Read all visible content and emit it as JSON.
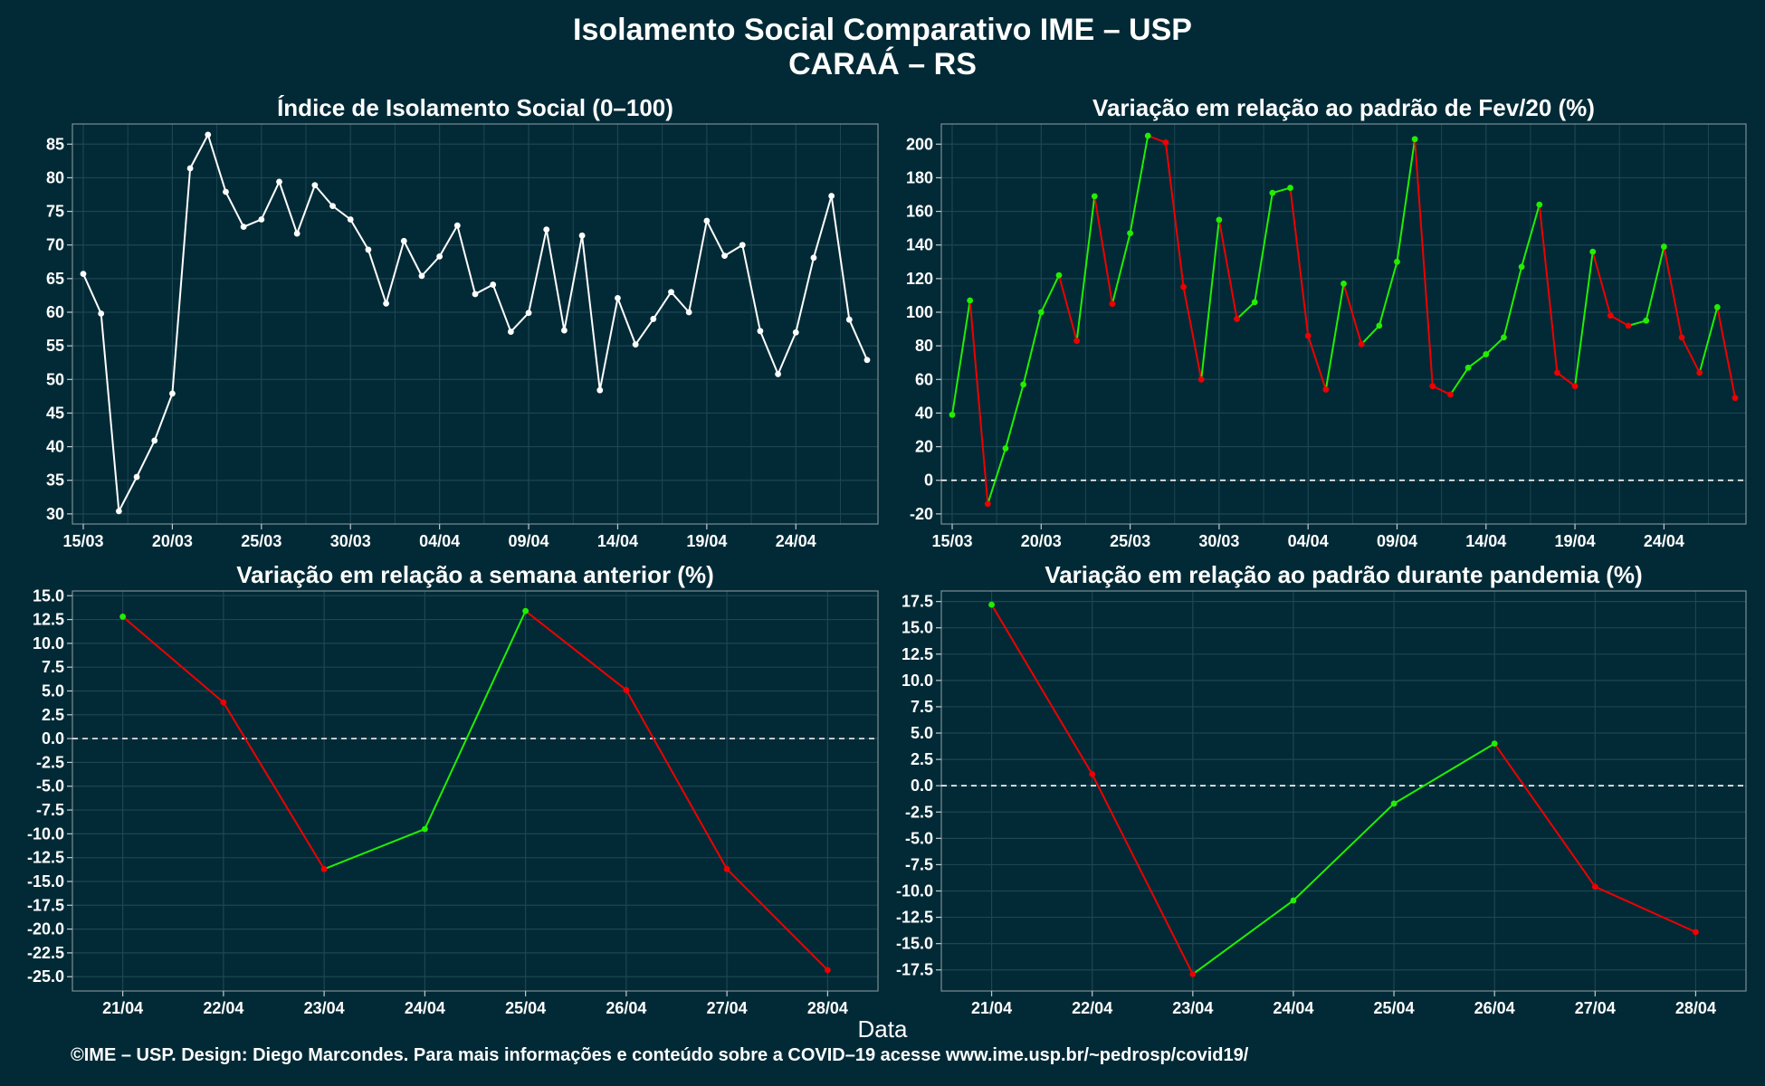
{
  "title": "Isolamento Social Comparativo IME – USP",
  "subtitle": "CARAÁ – RS",
  "footer": "©IME – USP. Design: Diego Marcondes. Para mais informações e conteúdo sobre a COVID–19 acesse www.ime.usp.br/~pedrosp/covid19/",
  "xlabel": "Data",
  "colors": {
    "background": "#022a36",
    "white_line": "#ffffff",
    "positive": "#22ee00",
    "negative": "#ee0000",
    "grid": "#1d4652"
  },
  "chart_data": [
    {
      "type": "line",
      "title": "Índice de Isolamento Social (0–100)",
      "x_type": "date",
      "x_start": "15/03",
      "x_tick_labels": [
        "15/03",
        "20/03",
        "25/03",
        "30/03",
        "04/04",
        "09/04",
        "14/04",
        "19/04",
        "24/04"
      ],
      "y_ticks": [
        30,
        35,
        40,
        45,
        50,
        55,
        60,
        65,
        70,
        75,
        80,
        85
      ],
      "ylim": [
        28.5,
        88
      ],
      "color": "#ffffff",
      "values": [
        65.7,
        59.8,
        30.4,
        35.5,
        40.9,
        47.9,
        81.4,
        86.4,
        77.9,
        72.7,
        73.8,
        79.4,
        71.7,
        78.9,
        75.8,
        73.8,
        69.3,
        61.3,
        70.6,
        65.4,
        68.3,
        72.9,
        62.7,
        64.1,
        57.1,
        59.9,
        72.3,
        57.3,
        71.4,
        48.4,
        62.1,
        55.2,
        59.0,
        63.0,
        60.0,
        73.6,
        68.4,
        70.0,
        57.2,
        50.8,
        57.0,
        68.1,
        77.3,
        58.9,
        52.9
      ]
    },
    {
      "type": "line",
      "title": "Variação em relação ao padrão de Fev/20 (%)",
      "x_type": "date",
      "x_start": "15/03",
      "x_tick_labels": [
        "15/03",
        "20/03",
        "25/03",
        "30/03",
        "04/04",
        "09/04",
        "14/04",
        "19/04",
        "24/04"
      ],
      "y_ticks": [
        -20,
        0,
        20,
        40,
        60,
        80,
        100,
        120,
        140,
        160,
        180,
        200
      ],
      "ylim": [
        -26,
        212
      ],
      "zero_line": true,
      "values": [
        39,
        107,
        -14,
        19,
        57,
        100,
        122,
        83,
        169,
        105,
        147,
        205,
        201,
        115,
        60,
        155,
        96,
        106,
        171,
        174,
        86,
        54,
        117,
        81,
        92,
        130,
        203,
        56,
        51,
        67,
        75,
        85,
        127,
        164,
        64,
        56,
        136,
        98,
        92,
        95,
        139,
        85,
        64,
        103,
        49
      ]
    },
    {
      "type": "line",
      "title": "Variação em relação a semana anterior (%)",
      "categories": [
        "21/04",
        "22/04",
        "23/04",
        "24/04",
        "25/04",
        "26/04",
        "27/04",
        "28/04"
      ],
      "y_ticks": [
        -25,
        -22.5,
        -20,
        -17.5,
        -15,
        -12.5,
        -10,
        -7.5,
        -5,
        -2.5,
        0,
        2.5,
        5,
        7.5,
        10,
        12.5,
        15
      ],
      "ylim": [
        -26.5,
        15.5
      ],
      "zero_line": true,
      "values": [
        12.8,
        3.8,
        -13.7,
        -9.5,
        13.4,
        5.1,
        -13.7,
        -24.3
      ]
    },
    {
      "type": "line",
      "title": "Variação em relação ao padrão durante pandemia (%)",
      "categories": [
        "21/04",
        "22/04",
        "23/04",
        "24/04",
        "25/04",
        "26/04",
        "27/04",
        "28/04"
      ],
      "y_ticks": [
        -17.5,
        -15,
        -12.5,
        -10,
        -7.5,
        -5,
        -2.5,
        0,
        2.5,
        5,
        7.5,
        10,
        12.5,
        15,
        17.5
      ],
      "ylim": [
        -19.5,
        18.5
      ],
      "zero_line": true,
      "values": [
        17.2,
        1.1,
        -17.9,
        -10.9,
        -1.7,
        4.0,
        -9.6,
        -13.9
      ]
    }
  ]
}
